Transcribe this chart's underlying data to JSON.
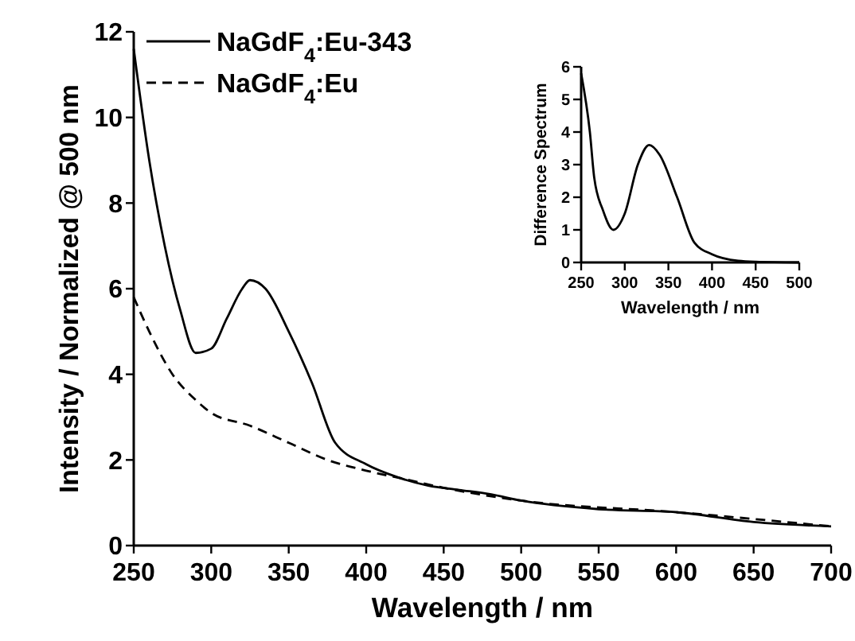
{
  "chart_data": [
    {
      "type": "line",
      "xlabel": "Wavelength / nm",
      "ylabel": "Intensity / Normalized @ 500 nm",
      "xlim": [
        250,
        700
      ],
      "ylim": [
        0,
        12
      ],
      "xticks": [
        250,
        300,
        350,
        400,
        450,
        500,
        550,
        600,
        650,
        700
      ],
      "yticks": [
        0,
        2,
        4,
        6,
        8,
        10,
        12
      ],
      "legend": "top left",
      "grid": false,
      "series": [
        {
          "name": "NaGdF$_{4}$:Eu-343",
          "color": "#000000",
          "line_style": "solid",
          "x": [
            250,
            260,
            270,
            280,
            290,
            300,
            310,
            320,
            325,
            335,
            350,
            365,
            380,
            400,
            420,
            440,
            460,
            480,
            500,
            550,
            600,
            650,
            700
          ],
          "values": [
            11.6,
            9,
            7,
            5.5,
            4.5,
            4.6,
            5.3,
            6,
            6.2,
            6,
            5,
            3.8,
            2.4,
            1.9,
            1.6,
            1.4,
            1.3,
            1.2,
            1.05,
            0.85,
            0.78,
            0.55,
            0.45
          ]
        },
        {
          "name": "NaGdF$_{4}$:Eu",
          "color": "#000000",
          "line_style": "dashed",
          "x": [
            250,
            260,
            275,
            290,
            300,
            325,
            350,
            375,
            400,
            425,
            450,
            500,
            600,
            700
          ],
          "values": [
            5.8,
            5,
            4,
            3.4,
            3.1,
            2.8,
            2.4,
            2,
            1.75,
            1.55,
            1.35,
            1.05,
            0.78,
            0.45
          ]
        }
      ]
    },
    {
      "type": "line",
      "xlabel": "Wavelength / nm",
      "ylabel": "Difference Spectrum",
      "xlim": [
        250,
        500
      ],
      "ylim": [
        0,
        6
      ],
      "xticks": [
        250,
        300,
        350,
        400,
        450,
        500
      ],
      "yticks": [
        0,
        1,
        2,
        3,
        4,
        5,
        6
      ],
      "grid": false,
      "series": [
        {
          "color": "#000000",
          "x": [
            250,
            260,
            265,
            275,
            287,
            300,
            315,
            328,
            340,
            360,
            380,
            400,
            430,
            450,
            500
          ],
          "values": [
            5.8,
            4,
            2.6,
            1.6,
            1,
            1.5,
            3,
            3.6,
            3.3,
            2,
            0.6,
            0.25,
            0.05,
            0.02,
            0
          ]
        }
      ]
    }
  ]
}
